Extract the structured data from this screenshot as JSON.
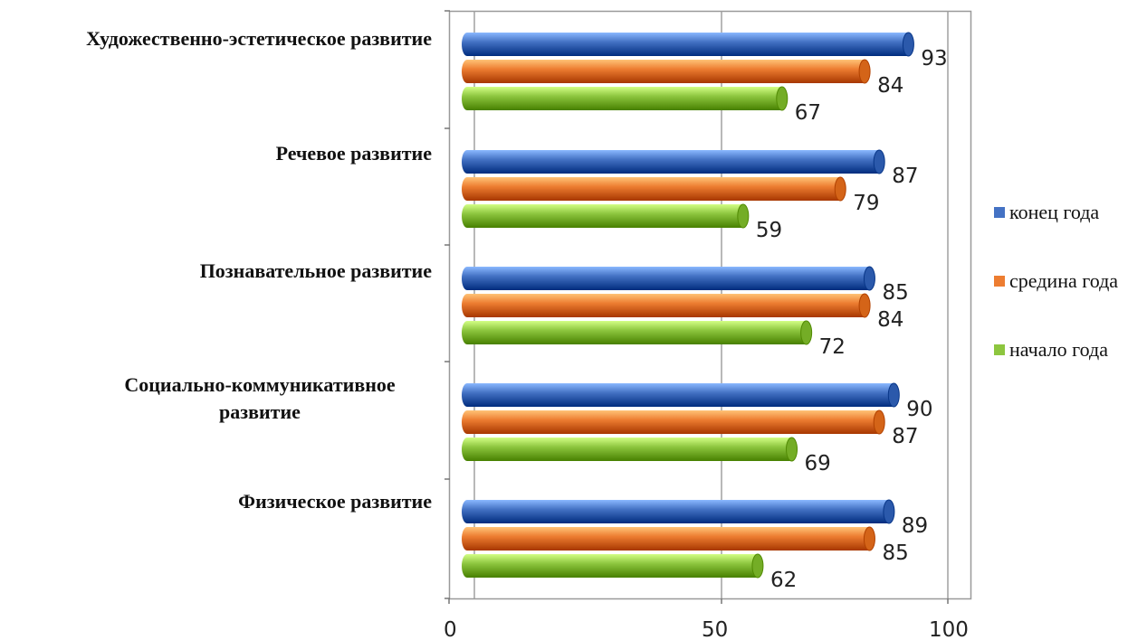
{
  "chart_data": {
    "type": "bar",
    "orientation": "horizontal",
    "categories": [
      "Художественно-эстетическое развитие",
      "Речевое развитие",
      "Познавательное развитие",
      "Социально-коммуникативное развитие",
      "Физическое развитие"
    ],
    "series": [
      {
        "name": "конец года",
        "color": "#4472C4",
        "values": [
          93,
          87,
          85,
          90,
          89
        ]
      },
      {
        "name": "средина года",
        "color": "#ED7D31",
        "values": [
          84,
          79,
          84,
          87,
          85
        ]
      },
      {
        "name": "начало года",
        "color": "#8DC63F",
        "values": [
          67,
          59,
          72,
          69,
          62
        ]
      }
    ],
    "xlim": [
      0,
      100
    ],
    "x_ticks": [
      0,
      50,
      100
    ],
    "grid": true,
    "legend_position": "right",
    "title": "",
    "xlabel": "",
    "ylabel": ""
  }
}
